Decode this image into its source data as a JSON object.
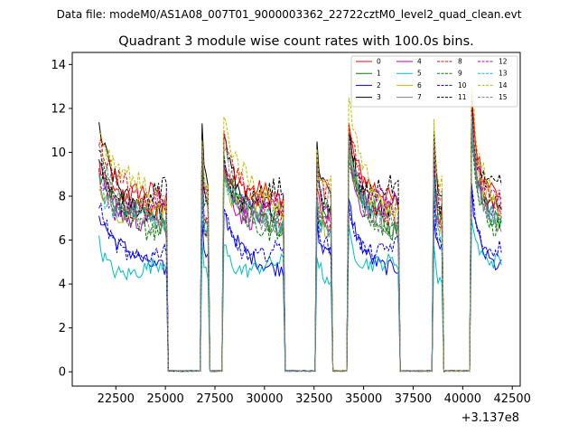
{
  "suptitle": "Data file: modeM0/AS1A08_007T01_9000003362_22722cztM0_level2_quad_clean.evt",
  "chart_data": {
    "type": "line",
    "title": "Quadrant 3 module wise count rates with 100.0s bins.",
    "xlabel": "",
    "ylabel": "",
    "offset_text": "+3.137e8",
    "xlim": [
      20300,
      42900
    ],
    "ylim": [
      -0.65,
      14.55
    ],
    "x_ticks": [
      22500,
      25000,
      27500,
      30000,
      32500,
      35000,
      37500,
      40000,
      42500
    ],
    "x_tick_labels": [
      "22500",
      "25000",
      "27500",
      "30000",
      "32500",
      "35000",
      "37500",
      "40000",
      "42500"
    ],
    "y_ticks": [
      0,
      2,
      4,
      6,
      8,
      10,
      12,
      14
    ],
    "y_tick_labels": [
      "0",
      "2",
      "4",
      "6",
      "8",
      "10",
      "12",
      "14"
    ],
    "legend_location": "upper right",
    "segments": [
      [
        21650,
        25050
      ],
      [
        26850,
        27150
      ],
      [
        27950,
        31000
      ],
      [
        32600,
        33400
      ],
      [
        34250,
        36800
      ],
      [
        38550,
        39000
      ],
      [
        40450,
        41950
      ]
    ],
    "series": [
      {
        "name": "0",
        "color": "#ff0000",
        "dash": "solid",
        "level": 8.2
      },
      {
        "name": "1",
        "color": "#008000",
        "dash": "solid",
        "level": 7.4
      },
      {
        "name": "2",
        "color": "#0000ff",
        "dash": "solid",
        "level": 5.6
      },
      {
        "name": "3",
        "color": "#000000",
        "dash": "solid",
        "level": 8.6
      },
      {
        "name": "4",
        "color": "#bf00bf",
        "dash": "solid",
        "level": 8.0
      },
      {
        "name": "5",
        "color": "#00bfbf",
        "dash": "solid",
        "level": 5.0
      },
      {
        "name": "6",
        "color": "#bfbf00",
        "dash": "solid",
        "level": 7.6
      },
      {
        "name": "7",
        "color": "#808080",
        "dash": "solid",
        "level": 7.2
      },
      {
        "name": "8",
        "color": "#ff0000",
        "dash": "dashed",
        "level": 8.4
      },
      {
        "name": "9",
        "color": "#008000",
        "dash": "dashed",
        "level": 7.6
      },
      {
        "name": "10",
        "color": "#0000ff",
        "dash": "dashed",
        "level": 6.1
      },
      {
        "name": "11",
        "color": "#000000",
        "dash": "dashed",
        "level": 8.5
      },
      {
        "name": "12",
        "color": "#bf00bf",
        "dash": "dashed",
        "level": 7.8
      },
      {
        "name": "13",
        "color": "#00bfbf",
        "dash": "dashed",
        "level": 7.3
      },
      {
        "name": "14",
        "color": "#bfbf00",
        "dash": "dashed",
        "level": 8.9
      },
      {
        "name": "15",
        "color": "#808080",
        "dash": "dashed",
        "level": 7.9
      }
    ]
  }
}
